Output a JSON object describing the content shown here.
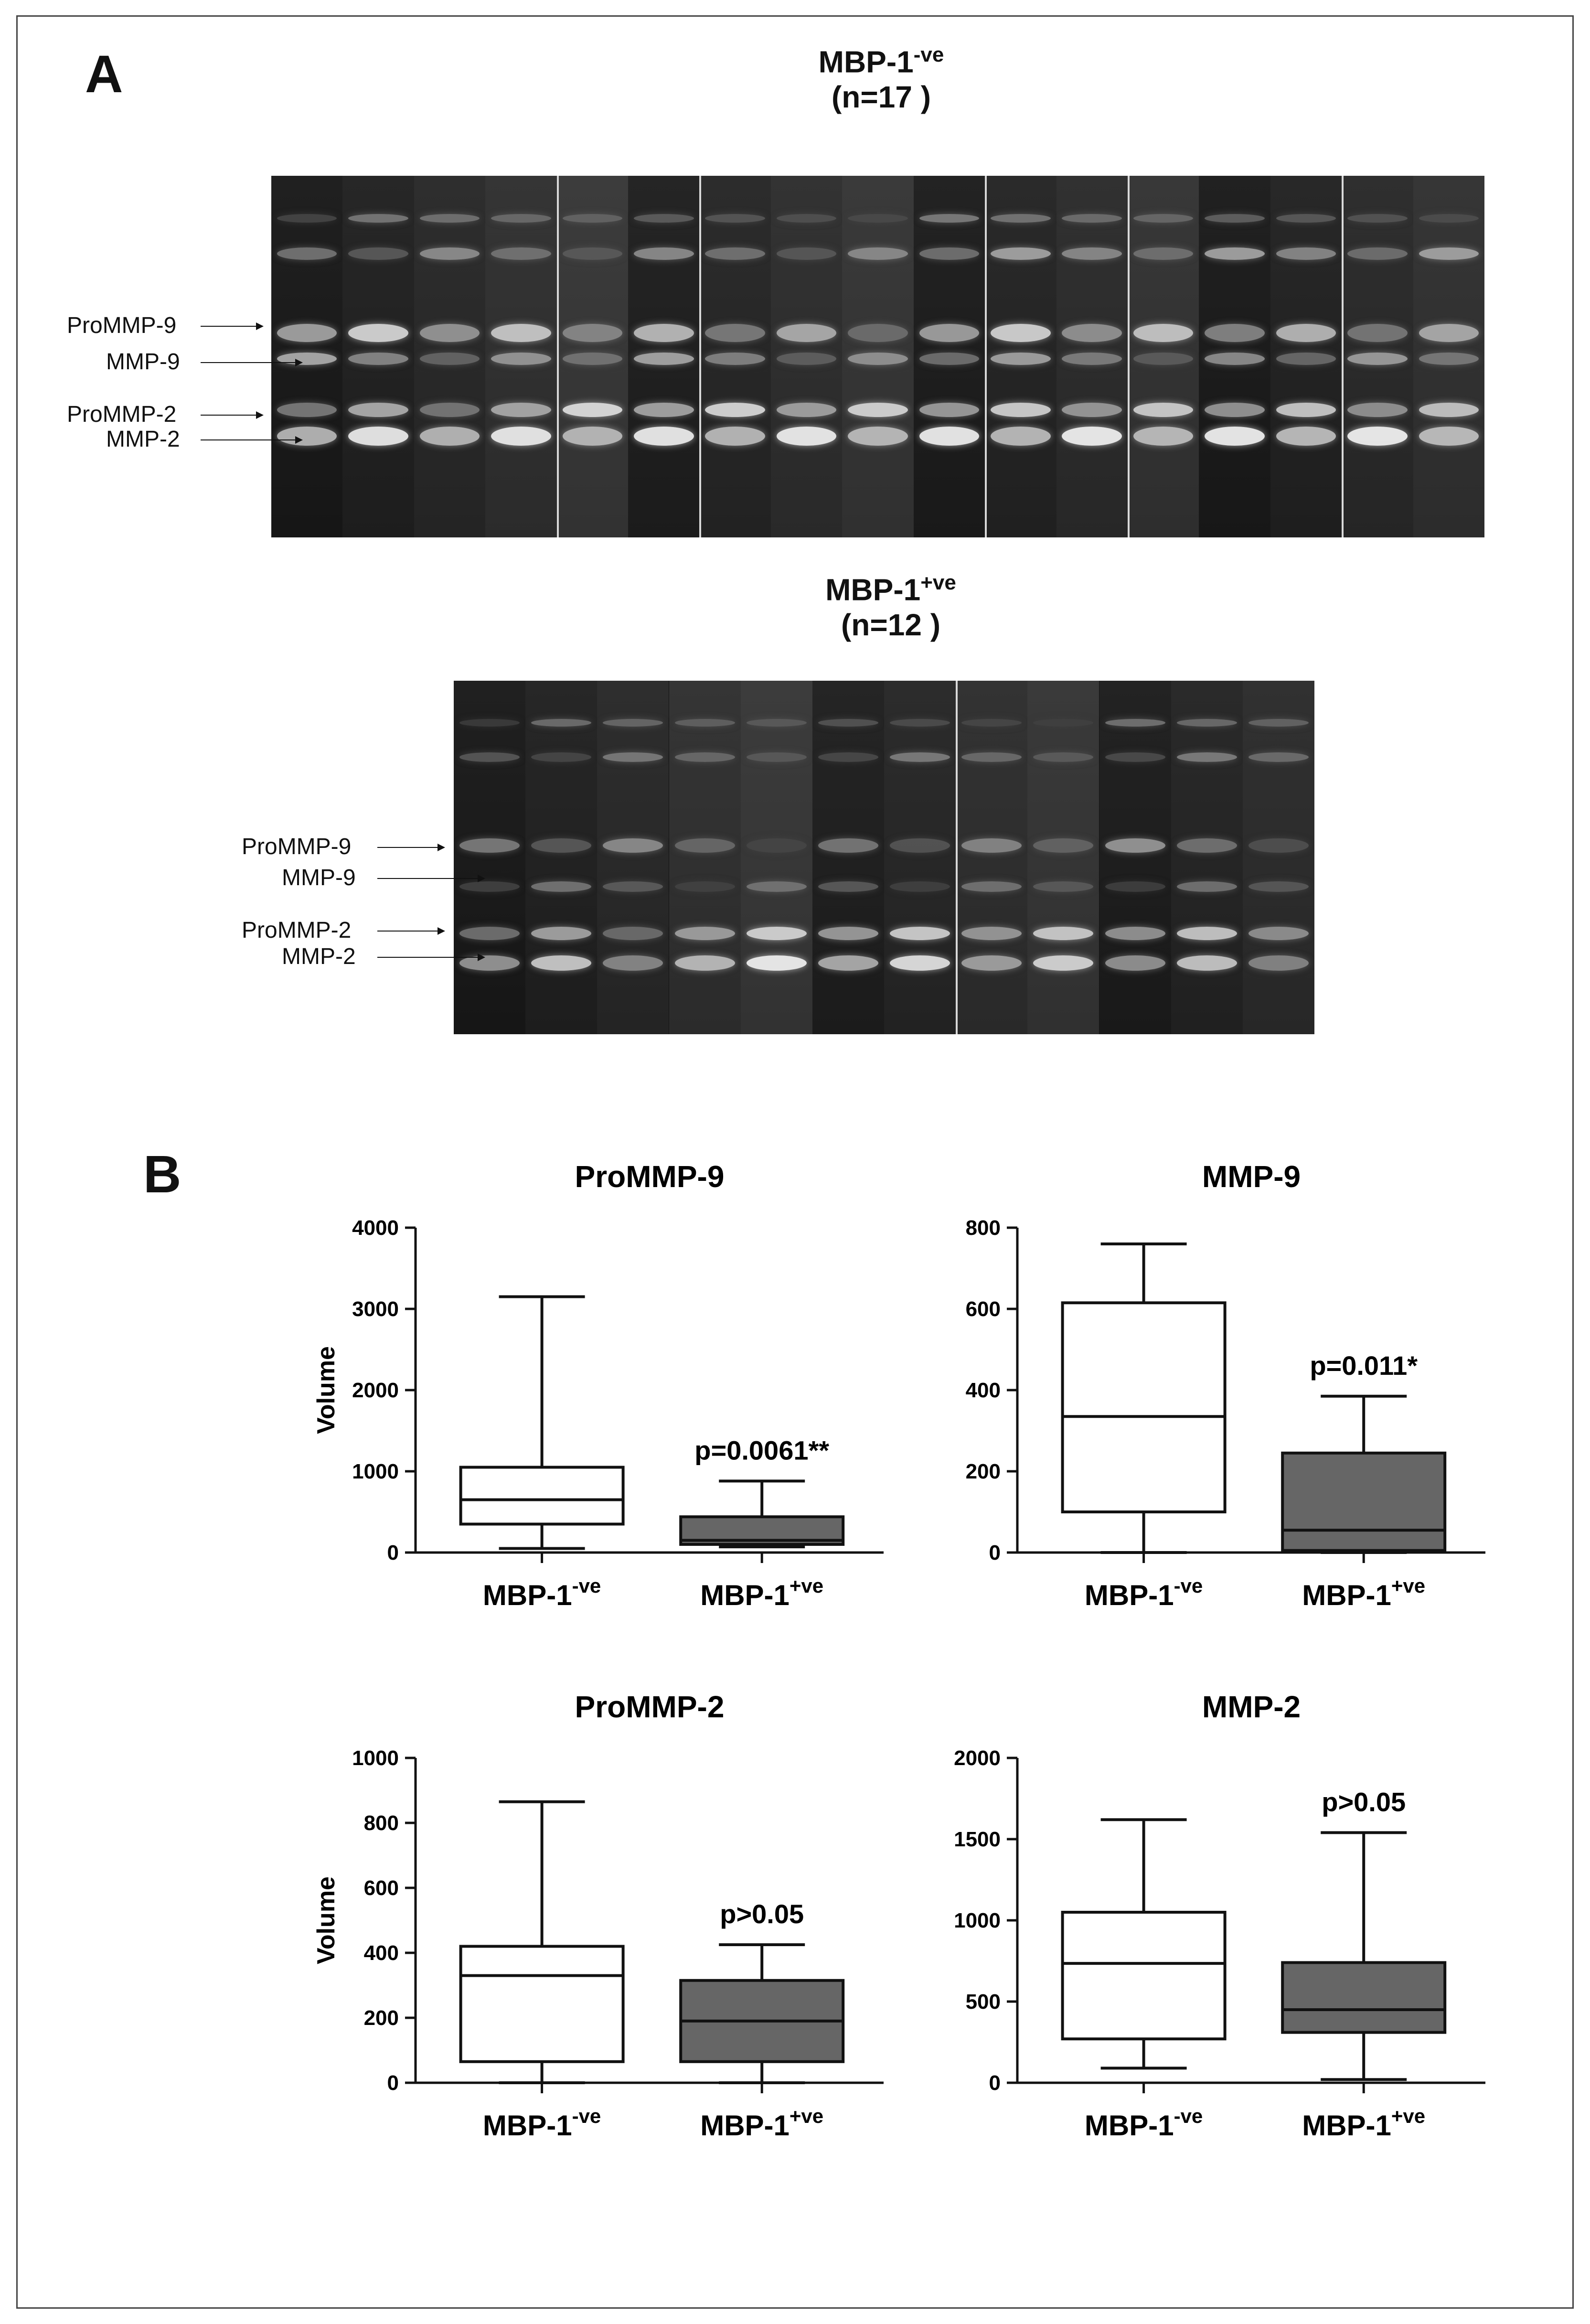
{
  "panel_a": {
    "letter": "A",
    "gel_top": {
      "title_prefix": "MBP-1",
      "title_sup": "-ve",
      "title_n": "(n=17 )",
      "markers": [
        "ProMMP-9",
        "MMP-9",
        "ProMMP-2",
        "MMP-2"
      ]
    },
    "gel_bottom": {
      "title_prefix": "MBP-1",
      "title_sup": "+ve",
      "title_n": "(n=12 )",
      "markers": [
        "ProMMP-9",
        "MMP-9",
        "ProMMP-2",
        "MMP-2"
      ]
    }
  },
  "panel_b": {
    "letter": "B"
  },
  "chart_data": [
    {
      "type": "boxplot",
      "title": "ProMMP-9",
      "ylabel": "Volume",
      "ylim": [
        0,
        4000
      ],
      "yticks": [
        0,
        1000,
        2000,
        3000,
        4000
      ],
      "annotation": "p=0.0061**",
      "groups": [
        {
          "label_main": "MBP-1",
          "label_sup": "-ve",
          "fill": "#ffffff",
          "min": 50,
          "q1": 350,
          "median": 650,
          "q3": 1050,
          "max": 3150
        },
        {
          "label_main": "MBP-1",
          "label_sup": "+ve",
          "fill": "#666666",
          "min": 70,
          "q1": 100,
          "median": 150,
          "q3": 440,
          "max": 880
        }
      ]
    },
    {
      "type": "boxplot",
      "title": "MMP-9",
      "ylabel": "",
      "ylim": [
        0,
        800
      ],
      "yticks": [
        0,
        200,
        400,
        600,
        800
      ],
      "annotation": "p=0.011*",
      "groups": [
        {
          "label_main": "MBP-1",
          "label_sup": "-ve",
          "fill": "#ffffff",
          "min": 0,
          "q1": 100,
          "median": 335,
          "q3": 615,
          "max": 760
        },
        {
          "label_main": "MBP-1",
          "label_sup": "+ve",
          "fill": "#666666",
          "min": 0,
          "q1": 5,
          "median": 55,
          "q3": 245,
          "max": 385
        }
      ]
    },
    {
      "type": "boxplot",
      "title": "ProMMP-2",
      "ylabel": "Volume",
      "ylim": [
        0,
        1000
      ],
      "yticks": [
        0,
        200,
        400,
        600,
        800,
        1000
      ],
      "annotation": "p>0.05",
      "groups": [
        {
          "label_main": "MBP-1",
          "label_sup": "-ve",
          "fill": "#ffffff",
          "min": 0,
          "q1": 65,
          "median": 330,
          "q3": 420,
          "max": 865
        },
        {
          "label_main": "MBP-1",
          "label_sup": "+ve",
          "fill": "#666666",
          "min": 0,
          "q1": 65,
          "median": 190,
          "q3": 315,
          "max": 425
        }
      ]
    },
    {
      "type": "boxplot",
      "title": "MMP-2",
      "ylabel": "",
      "ylim": [
        0,
        2000
      ],
      "yticks": [
        0,
        500,
        1000,
        1500,
        2000
      ],
      "annotation": "p>0.05",
      "groups": [
        {
          "label_main": "MBP-1",
          "label_sup": "-ve",
          "fill": "#ffffff",
          "min": 90,
          "q1": 270,
          "median": 735,
          "q3": 1050,
          "max": 1620
        },
        {
          "label_main": "MBP-1",
          "label_sup": "+ve",
          "fill": "#666666",
          "min": 20,
          "q1": 310,
          "median": 450,
          "q3": 740,
          "max": 1540
        }
      ]
    }
  ]
}
